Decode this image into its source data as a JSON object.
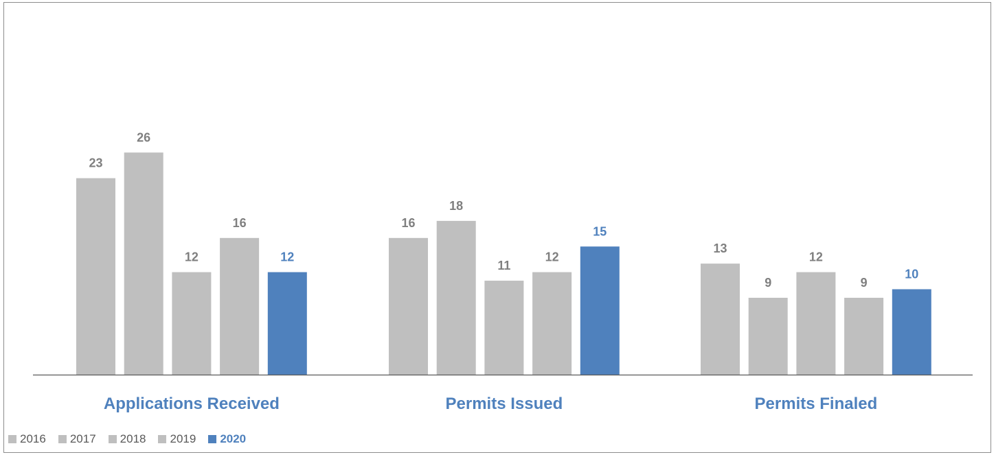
{
  "chart_data": {
    "type": "bar",
    "categories": [
      "Applications Received",
      "Permits Issued",
      "Permits Finaled"
    ],
    "series": [
      {
        "name": "2016",
        "values": [
          23,
          16,
          13
        ]
      },
      {
        "name": "2017",
        "values": [
          26,
          18,
          9
        ]
      },
      {
        "name": "2018",
        "values": [
          12,
          11,
          12
        ]
      },
      {
        "name": "2019",
        "values": [
          16,
          12,
          9
        ]
      },
      {
        "name": "2020",
        "values": [
          12,
          15,
          10
        ]
      }
    ],
    "title": "",
    "xlabel": "",
    "ylabel": "",
    "ylim": [
      0,
      30
    ],
    "grid": false,
    "legend_position": "bottom-left",
    "colors": {
      "default_series": "#bfbfbf",
      "highlight_series": "#4f81bd",
      "default_label": "#7f7f7f",
      "highlight_label": "#4f81bd",
      "category_label": "#4f81bd",
      "axis": "#595959"
    },
    "highlight_series": "2020"
  }
}
